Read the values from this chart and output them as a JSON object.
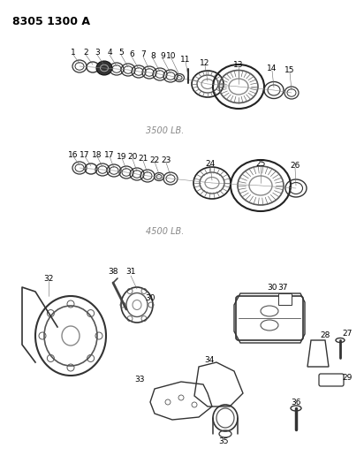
{
  "title": "8305 1300 A",
  "label_3500": "3500 LB.",
  "label_4500": "4500 LB.",
  "bg_color": "#ffffff",
  "fg_color": "#000000",
  "title_fontsize": 9,
  "label_fontsize": 7,
  "part_label_fontsize": 6.5,
  "figsize": [
    4.12,
    5.33
  ],
  "dpi": 100
}
